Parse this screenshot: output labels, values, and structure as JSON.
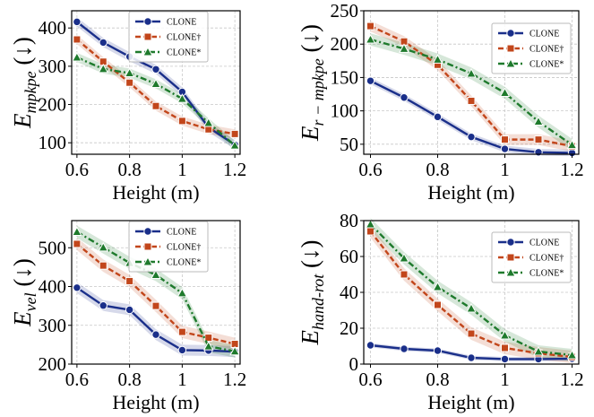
{
  "chart_data": [
    {
      "type": "line",
      "id": "mpkpe",
      "ylabel_main": "E",
      "ylabel_sub": "mpkpe",
      "ylabel_suffix": "(↓)",
      "xlabel": "Height (m)",
      "x": [
        0.6,
        0.7,
        0.8,
        0.9,
        1.0,
        1.1,
        1.2
      ],
      "xlim": [
        0.58,
        1.22
      ],
      "ylim": [
        70,
        445
      ],
      "xticks": [
        0.6,
        0.8,
        1.0,
        1.2
      ],
      "yticks": [
        100,
        200,
        300,
        400
      ],
      "legend_position": "top-right",
      "series": [
        {
          "name": "CLONE",
          "color": "#1a2f8a",
          "marker": "circle",
          "dash": "solid",
          "band": 12,
          "values": [
            416,
            362,
            325,
            292,
            233,
            140,
            95
          ]
        },
        {
          "name": "CLONE†",
          "color": "#c2461b",
          "marker": "square",
          "dash": "dashed",
          "band": 12,
          "values": [
            370,
            312,
            257,
            196,
            157,
            135,
            123
          ]
        },
        {
          "name": "CLONE*",
          "color": "#1e7a2c",
          "marker": "triangle",
          "dash": "dashdot",
          "band": 12,
          "values": [
            323,
            293,
            282,
            254,
            215,
            152,
            93
          ]
        }
      ]
    },
    {
      "type": "line",
      "id": "r-mpkpe",
      "ylabel_main": "E",
      "ylabel_sub": "r − mpkpe",
      "ylabel_suffix": "(↓)",
      "xlabel": "Height (m)",
      "x": [
        0.6,
        0.7,
        0.8,
        0.9,
        1.0,
        1.1,
        1.2
      ],
      "xlim": [
        0.58,
        1.22
      ],
      "ylim": [
        35,
        250
      ],
      "xticks": [
        0.6,
        0.8,
        1.0,
        1.2
      ],
      "yticks": [
        50,
        100,
        150,
        200,
        250
      ],
      "legend_position": "top-right",
      "series": [
        {
          "name": "CLONE",
          "color": "#1a2f8a",
          "marker": "circle",
          "dash": "solid",
          "band": 5,
          "values": [
            145,
            120,
            91,
            61,
            43,
            38,
            37
          ]
        },
        {
          "name": "CLONE†",
          "color": "#c2461b",
          "marker": "square",
          "dash": "dashed",
          "band": 8,
          "values": [
            227,
            204,
            169,
            115,
            57,
            57,
            47
          ]
        },
        {
          "name": "CLONE*",
          "color": "#1e7a2c",
          "marker": "triangle",
          "dash": "dashdot",
          "band": 9,
          "values": [
            207,
            193,
            177,
            156,
            127,
            84,
            49
          ]
        }
      ]
    },
    {
      "type": "line",
      "id": "vel",
      "ylabel_main": "E",
      "ylabel_sub": "vel",
      "ylabel_suffix": "(↓)",
      "xlabel": "Height (m)",
      "x": [
        0.6,
        0.7,
        0.8,
        0.9,
        1.0,
        1.1,
        1.2
      ],
      "xlim": [
        0.58,
        1.22
      ],
      "ylim": [
        200,
        570
      ],
      "xticks": [
        0.6,
        0.8,
        1.0,
        1.2
      ],
      "yticks": [
        200,
        300,
        400,
        500
      ],
      "legend_position": "top-right",
      "series": [
        {
          "name": "CLONE",
          "color": "#1a2f8a",
          "marker": "circle",
          "dash": "solid",
          "band": 14,
          "values": [
            397,
            351,
            340,
            276,
            236,
            235,
            232
          ]
        },
        {
          "name": "CLONE†",
          "color": "#c2461b",
          "marker": "square",
          "dash": "dashed",
          "band": 16,
          "values": [
            510,
            454,
            414,
            350,
            283,
            268,
            252
          ]
        },
        {
          "name": "CLONE*",
          "color": "#1e7a2c",
          "marker": "triangle",
          "dash": "dashdot",
          "band": 16,
          "values": [
            541,
            501,
            461,
            430,
            383,
            246,
            233
          ]
        }
      ]
    },
    {
      "type": "line",
      "id": "hand-rot",
      "ylabel_main": "E",
      "ylabel_sub": "hand-rot",
      "ylabel_suffix": "(↓)",
      "xlabel": "Height (m)",
      "x": [
        0.6,
        0.7,
        0.8,
        0.9,
        1.0,
        1.1,
        1.2
      ],
      "xlim": [
        0.58,
        1.22
      ],
      "ylim": [
        0,
        80
      ],
      "xticks": [
        0.6,
        0.8,
        1.0,
        1.2
      ],
      "yticks": [
        0,
        20,
        40,
        60,
        80
      ],
      "legend_position": "top-right",
      "series": [
        {
          "name": "CLONE",
          "color": "#1a2f8a",
          "marker": "circle",
          "dash": "solid",
          "band": 1.2,
          "values": [
            10.5,
            8.5,
            7.5,
            3.5,
            2.8,
            2.8,
            3.0
          ]
        },
        {
          "name": "CLONE†",
          "color": "#c2461b",
          "marker": "square",
          "dash": "dashed",
          "band": 3.5,
          "values": [
            74,
            50,
            33,
            17,
            9,
            6,
            4
          ]
        },
        {
          "name": "CLONE*",
          "color": "#1e7a2c",
          "marker": "triangle",
          "dash": "dashdot",
          "band": 3.5,
          "values": [
            78,
            59,
            43,
            31,
            16,
            7,
            5
          ]
        }
      ]
    }
  ]
}
